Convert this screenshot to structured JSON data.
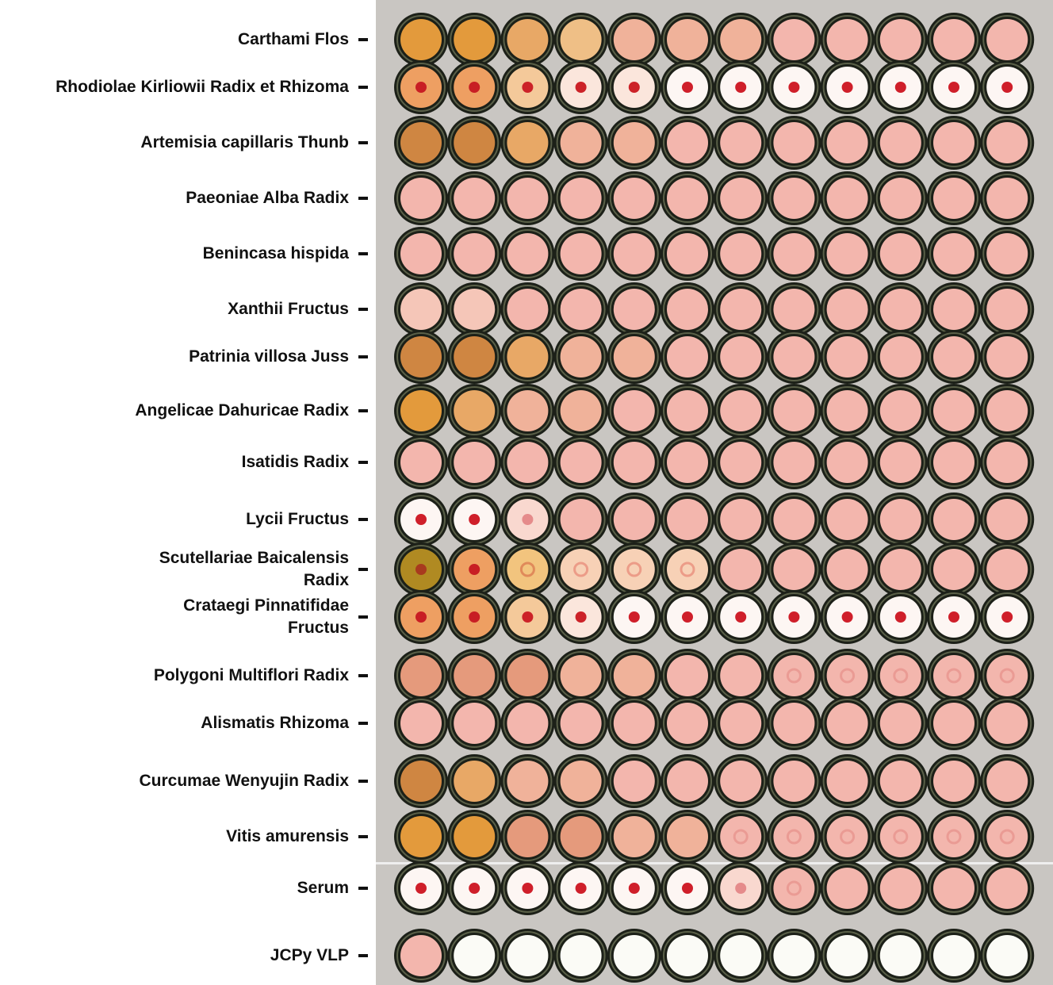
{
  "plate": {
    "background": "#c9c6c2",
    "rim_color": "#2a2e22",
    "rows": [
      {
        "label": "Carthami Flos",
        "wells": [
          "orange-deep",
          "orange-deep",
          "orange",
          "orange-light",
          "peach",
          "peach",
          "peach",
          "pink",
          "pink",
          "pink",
          "pink",
          "pink"
        ]
      },
      {
        "label": "Rhodiolae Kirliowii Radix et Rhizoma",
        "wells": [
          "button-orange",
          "button-orange",
          "button-tan",
          "button-pale",
          "button-pale",
          "button-white",
          "button-white",
          "button-white",
          "button-white",
          "button-white",
          "button-white",
          "button-white"
        ]
      },
      {
        "label": "Artemisia capillaris Thunb",
        "wells": [
          "brown",
          "brown",
          "orange",
          "peach",
          "peach",
          "pink",
          "pink",
          "pink",
          "pink",
          "pink",
          "pink",
          "pink"
        ]
      },
      {
        "label": "Paeoniae Alba Radix",
        "wells": [
          "pink",
          "pink",
          "pink",
          "pink",
          "pink",
          "pink",
          "pink",
          "pink",
          "pink",
          "pink",
          "pink",
          "pink"
        ]
      },
      {
        "label": "Benincasa hispida",
        "wells": [
          "pink",
          "pink",
          "pink",
          "pink",
          "pink",
          "pink",
          "pink",
          "pink",
          "pink",
          "pink",
          "pink",
          "pink"
        ]
      },
      {
        "label": "Xanthii Fructus",
        "wells": [
          "pink-light",
          "pink-light",
          "pink",
          "pink",
          "pink",
          "pink",
          "pink",
          "pink",
          "pink",
          "pink",
          "pink",
          "pink"
        ]
      },
      {
        "label": "Patrinia villosa Juss",
        "wells": [
          "brown",
          "brown",
          "orange",
          "peach",
          "peach",
          "pink",
          "pink",
          "pink",
          "pink",
          "pink",
          "pink",
          "pink"
        ]
      },
      {
        "label": "Angelicae Dahuricae Radix",
        "wells": [
          "orange-deep",
          "orange",
          "peach",
          "peach",
          "pink",
          "pink",
          "pink",
          "pink",
          "pink",
          "pink",
          "pink",
          "pink"
        ]
      },
      {
        "label": "Isatidis Radix",
        "wells": [
          "pink",
          "pink",
          "pink",
          "pink",
          "pink",
          "pink",
          "pink",
          "pink",
          "pink",
          "pink",
          "pink",
          "pink"
        ]
      },
      {
        "label": "Lycii Fructus",
        "wells": [
          "button-white",
          "button-white",
          "button-faint",
          "pink",
          "pink",
          "pink",
          "pink",
          "pink",
          "pink",
          "pink",
          "pink",
          "pink"
        ]
      },
      {
        "label": "Scutellariae Baicalensis Radix",
        "label_lines": [
          "Scutellariae Baicalensis",
          "Radix"
        ],
        "wells": [
          "button-olive",
          "button-orange",
          "ring-tan",
          "ring-pale",
          "ring-pale",
          "ring-pale",
          "pink",
          "pink",
          "pink",
          "pink",
          "pink",
          "pink"
        ]
      },
      {
        "label": "Crataegi Pinnatifidae Fructus",
        "label_lines": [
          "Crataegi Pinnatifidae",
          "Fructus"
        ],
        "wells": [
          "button-orange",
          "button-orange",
          "button-tan",
          "button-pale",
          "button-white",
          "button-white",
          "button-white",
          "button-white",
          "button-white",
          "button-white",
          "button-white",
          "button-white"
        ]
      },
      {
        "label": "Polygoni Multiflori Radix",
        "wells": [
          "peach-dark",
          "peach-dark",
          "peach-dark",
          "peach",
          "peach",
          "pink",
          "pink",
          "ring-pink",
          "ring-pink",
          "ring-pink",
          "ring-pink",
          "ring-pink"
        ]
      },
      {
        "label": "Alismatis Rhizoma",
        "wells": [
          "pink",
          "pink",
          "pink",
          "pink",
          "pink",
          "pink",
          "pink",
          "pink",
          "pink",
          "pink",
          "pink",
          "pink"
        ]
      },
      {
        "label": "Curcumae Wenyujin Radix",
        "wells": [
          "brown",
          "orange",
          "peach",
          "peach",
          "pink",
          "pink",
          "pink",
          "pink",
          "pink",
          "pink",
          "pink",
          "pink"
        ]
      },
      {
        "label": "Vitis amurensis",
        "wells": [
          "orange-deep",
          "orange-deep",
          "peach-dark",
          "peach-dark",
          "peach",
          "peach",
          "ring-pink",
          "ring-pink",
          "ring-pink",
          "ring-pink",
          "ring-pink",
          "ring-pink"
        ]
      },
      {
        "label": "Serum",
        "wells": [
          "button-white",
          "button-white",
          "button-white",
          "button-white",
          "button-white",
          "button-white",
          "button-faint",
          "ring-pink",
          "pink",
          "pink",
          "pink",
          "pink"
        ]
      },
      {
        "label": "JCPy VLP",
        "wells": [
          "pink",
          "empty",
          "empty",
          "empty",
          "empty",
          "empty",
          "empty",
          "empty",
          "empty",
          "empty",
          "empty",
          "empty"
        ]
      }
    ]
  },
  "well_styles": {
    "orange-deep": {
      "fill": "#e39a3c",
      "center": null
    },
    "orange": {
      "fill": "#e8a866",
      "center": null
    },
    "orange-light": {
      "fill": "#efbf86",
      "center": null
    },
    "peach": {
      "fill": "#f0b29a",
      "center": null
    },
    "peach-dark": {
      "fill": "#e59a7c",
      "center": null
    },
    "pink": {
      "fill": "#f3b6ad",
      "center": null
    },
    "pink-light": {
      "fill": "#f5c6b8",
      "center": null
    },
    "brown": {
      "fill": "#cf8642",
      "center": null
    },
    "button-orange": {
      "fill": "#ee9f62",
      "center": "#c81e24"
    },
    "button-olive": {
      "fill": "#b08a22",
      "center": "#a83a1e"
    },
    "button-tan": {
      "fill": "#f4c99a",
      "center": "#cc2228"
    },
    "button-pale": {
      "fill": "#fbe6dc",
      "center": "#cc2228"
    },
    "button-white": {
      "fill": "#fdf6f3",
      "center": "#cf1f2a"
    },
    "button-faint": {
      "fill": "#f9d8cf",
      "center": "#e58b8b"
    },
    "ring-tan": {
      "fill": "#f2c47e",
      "center": "#e08a5a"
    },
    "ring-pale": {
      "fill": "#f7d1b6",
      "center": "#ec9c88"
    },
    "ring-pink": {
      "fill": "#f3b6ad",
      "center": "#ea9b94"
    },
    "empty": {
      "fill": "#fbfbf6",
      "center": null
    }
  }
}
